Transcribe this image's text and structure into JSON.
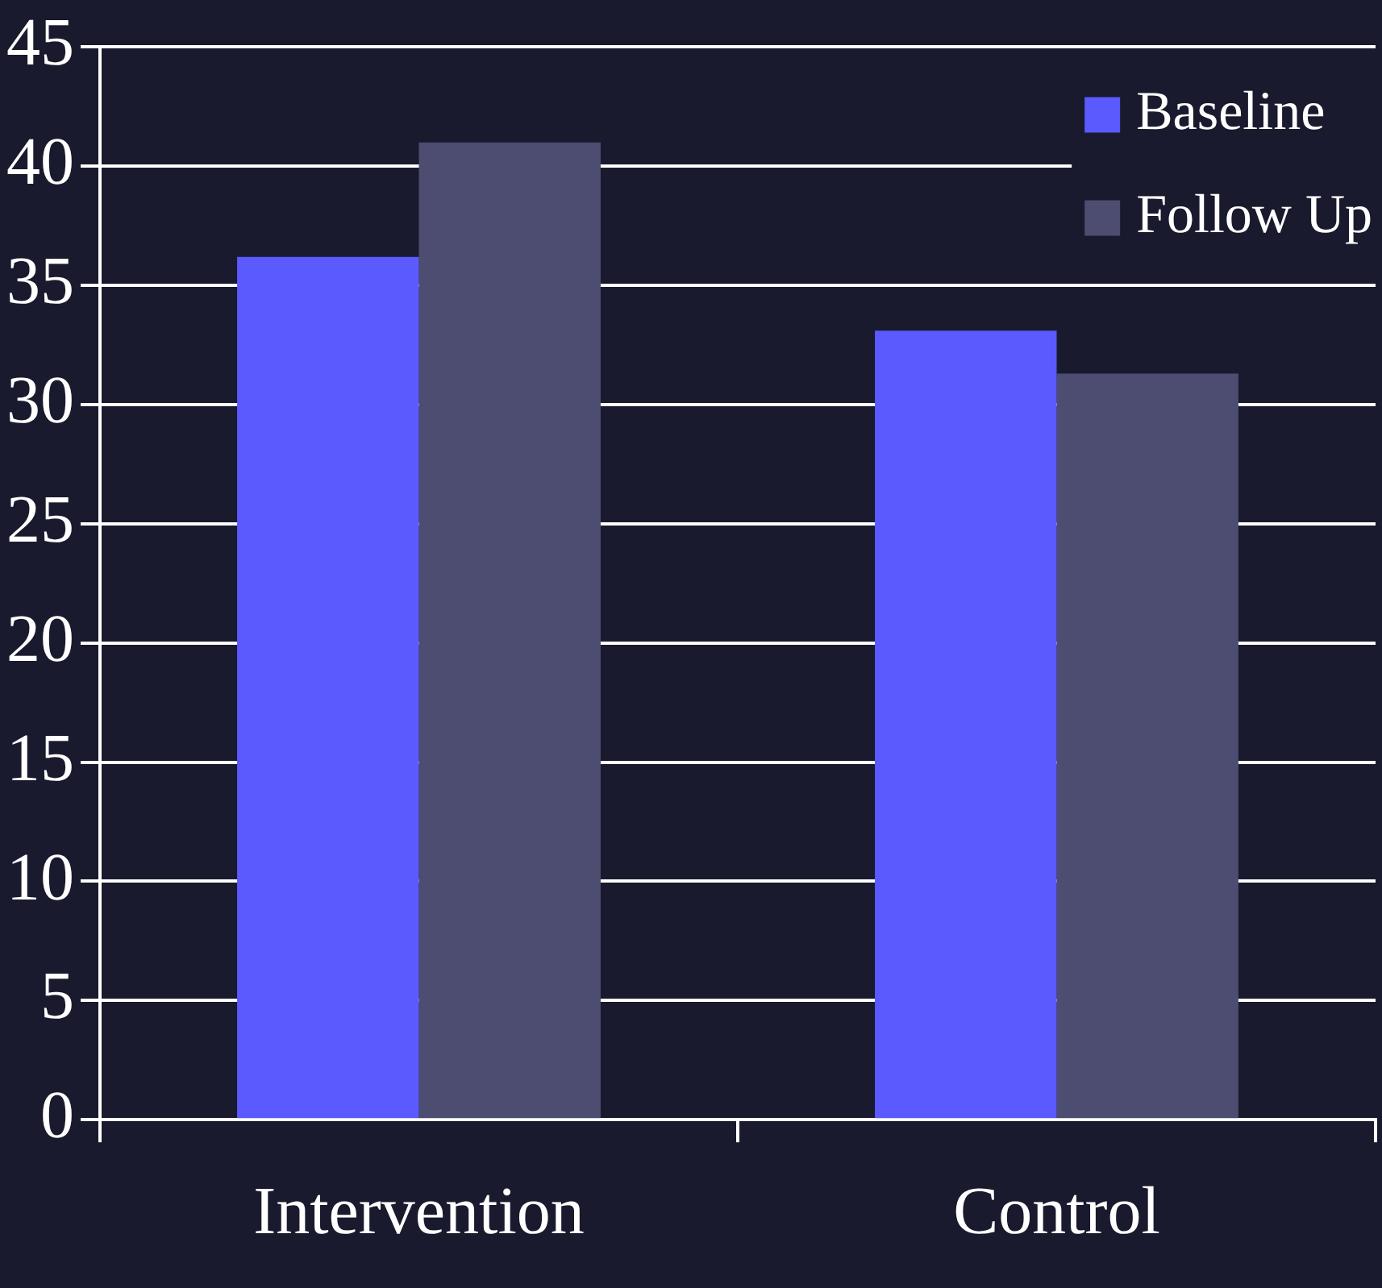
{
  "chart_data": {
    "type": "bar",
    "categories": [
      "Intervention",
      "Control"
    ],
    "series": [
      {
        "name": "Baseline",
        "color": "#5a5aff",
        "values": [
          36.2,
          33.1
        ]
      },
      {
        "name": "Follow Up",
        "color": "#4d4d72",
        "values": [
          41,
          31.3
        ]
      }
    ],
    "ylim": [
      0,
      45
    ],
    "yticks": [
      0,
      5,
      10,
      15,
      20,
      25,
      30,
      35,
      40,
      45
    ],
    "grid": "y",
    "legend": "top right"
  }
}
